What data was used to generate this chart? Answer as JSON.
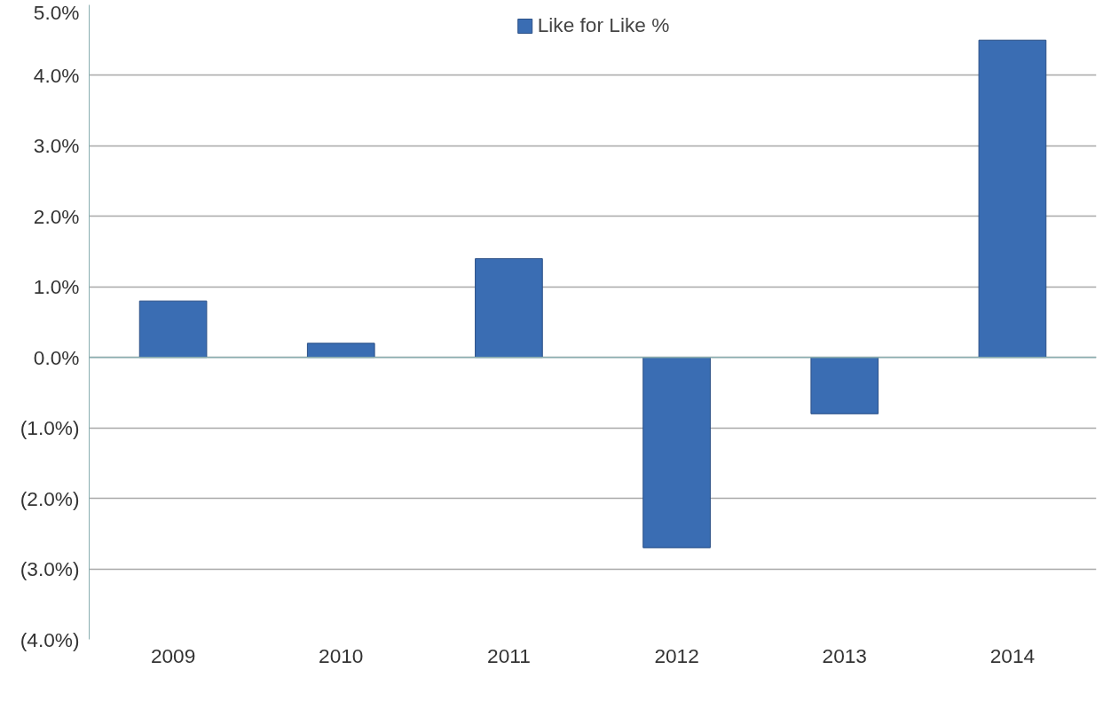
{
  "chart_data": {
    "type": "bar",
    "categories": [
      "2009",
      "2010",
      "2011",
      "2012",
      "2013",
      "2014"
    ],
    "series": [
      {
        "name": "Like for Like %",
        "color": "#3a6db3",
        "values": [
          0.8,
          0.2,
          1.4,
          -2.7,
          -0.8,
          4.5
        ]
      }
    ],
    "ylim": [
      -4.0,
      5.0
    ],
    "yticks": [
      {
        "value": -4,
        "label": "(4.0%)"
      },
      {
        "value": -3,
        "label": "(3.0%)"
      },
      {
        "value": -2,
        "label": "(2.0%)"
      },
      {
        "value": -1,
        "label": "(1.0%)"
      },
      {
        "value": 0,
        "label": "0.0%"
      },
      {
        "value": 1,
        "label": "1.0%"
      },
      {
        "value": 2,
        "label": "2.0%"
      },
      {
        "value": 3,
        "label": "3.0%"
      },
      {
        "value": 4,
        "label": "4.0%"
      },
      {
        "value": 5,
        "label": "5.0%"
      }
    ],
    "grid": "y",
    "legend": "top"
  }
}
